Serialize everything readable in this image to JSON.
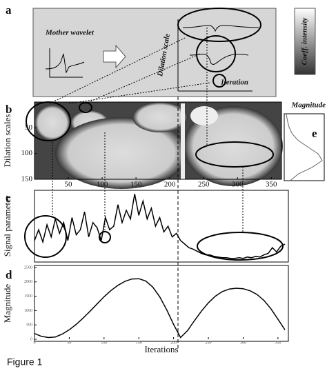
{
  "figure_label": "Figure 1",
  "panel_a": {
    "label": "a",
    "mother_wavelet": "Mother wavelet",
    "dilation_scale": "Dilation scale",
    "iteration": "Iteration",
    "colorbar_label": "Coeff. intensity"
  },
  "chart_data": [
    {
      "type": "heatmap",
      "label": "b",
      "y_label": "Dilation scales",
      "xlim": [
        0,
        365
      ],
      "xticks": [
        50,
        100,
        150,
        200,
        250,
        300,
        350
      ],
      "ylim": [
        0,
        150
      ],
      "y_inverted": true,
      "yticks": [
        50,
        100,
        150
      ]
    },
    {
      "type": "vline",
      "label": "e",
      "title": "Magnitude",
      "y": [
        0,
        15,
        30,
        45,
        60,
        75,
        90,
        105,
        120,
        135,
        150
      ],
      "values": [
        0.05,
        0.08,
        0.12,
        0.2,
        0.35,
        0.6,
        0.85,
        0.95,
        0.7,
        0.35,
        0.15
      ],
      "xlim": [
        0,
        1
      ],
      "ylim": [
        0,
        150
      ]
    },
    {
      "type": "line",
      "label": "c",
      "y_label": "Signal parameter",
      "x": [
        0,
        6,
        12,
        18,
        24,
        30,
        36,
        42,
        48,
        54,
        60,
        66,
        72,
        78,
        84,
        90,
        96,
        102,
        108,
        114,
        120,
        126,
        132,
        138,
        144,
        150,
        156,
        162,
        168,
        174,
        180,
        186,
        192,
        198,
        204,
        210,
        216,
        222,
        228,
        234,
        240,
        246,
        252,
        258,
        264,
        270,
        276,
        282,
        288,
        294,
        300,
        306,
        312,
        318,
        324,
        330,
        336,
        342,
        348,
        354,
        360
      ],
      "values": [
        0.3,
        0.45,
        0.28,
        0.52,
        0.35,
        0.6,
        0.4,
        0.55,
        0.3,
        0.62,
        0.38,
        0.45,
        0.7,
        0.35,
        0.55,
        0.48,
        0.3,
        0.62,
        0.45,
        0.5,
        0.8,
        0.55,
        0.72,
        0.6,
        0.95,
        0.65,
        0.85,
        0.6,
        0.75,
        0.5,
        0.62,
        0.42,
        0.5,
        0.35,
        0.4,
        0.3,
        0.25,
        0.2,
        0.18,
        0.15,
        0.12,
        0.1,
        0.1,
        0.08,
        0.07,
        0.06,
        0.06,
        0.05,
        0.05,
        0.06,
        0.05,
        0.07,
        0.06,
        0.08,
        0.07,
        0.1,
        0.12,
        0.2,
        0.14,
        0.22,
        0.25
      ],
      "xlim": [
        0,
        365
      ],
      "ylim": [
        0,
        1
      ]
    },
    {
      "type": "line",
      "label": "d",
      "y_label": "Magnitude",
      "x_label": "Iterations",
      "x": [
        0,
        10,
        20,
        30,
        40,
        50,
        60,
        70,
        80,
        90,
        100,
        110,
        120,
        130,
        140,
        150,
        160,
        170,
        180,
        190,
        200,
        210,
        220,
        230,
        240,
        250,
        260,
        270,
        280,
        290,
        300,
        310,
        320,
        330,
        340,
        350,
        360
      ],
      "values": [
        200,
        100,
        60,
        80,
        180,
        330,
        520,
        740,
        980,
        1230,
        1480,
        1700,
        1880,
        2020,
        2100,
        2110,
        2030,
        1820,
        1480,
        1030,
        520,
        60,
        300,
        650,
        980,
        1270,
        1500,
        1660,
        1750,
        1780,
        1760,
        1690,
        1560,
        1350,
        1060,
        700,
        330
      ],
      "xlim": [
        0,
        365
      ],
      "ylim": [
        0,
        2500
      ],
      "yticks": [
        0,
        500,
        1000,
        1500,
        2000,
        2500
      ],
      "xticks": [
        0,
        50,
        100,
        150,
        200,
        250,
        300,
        350
      ]
    }
  ]
}
